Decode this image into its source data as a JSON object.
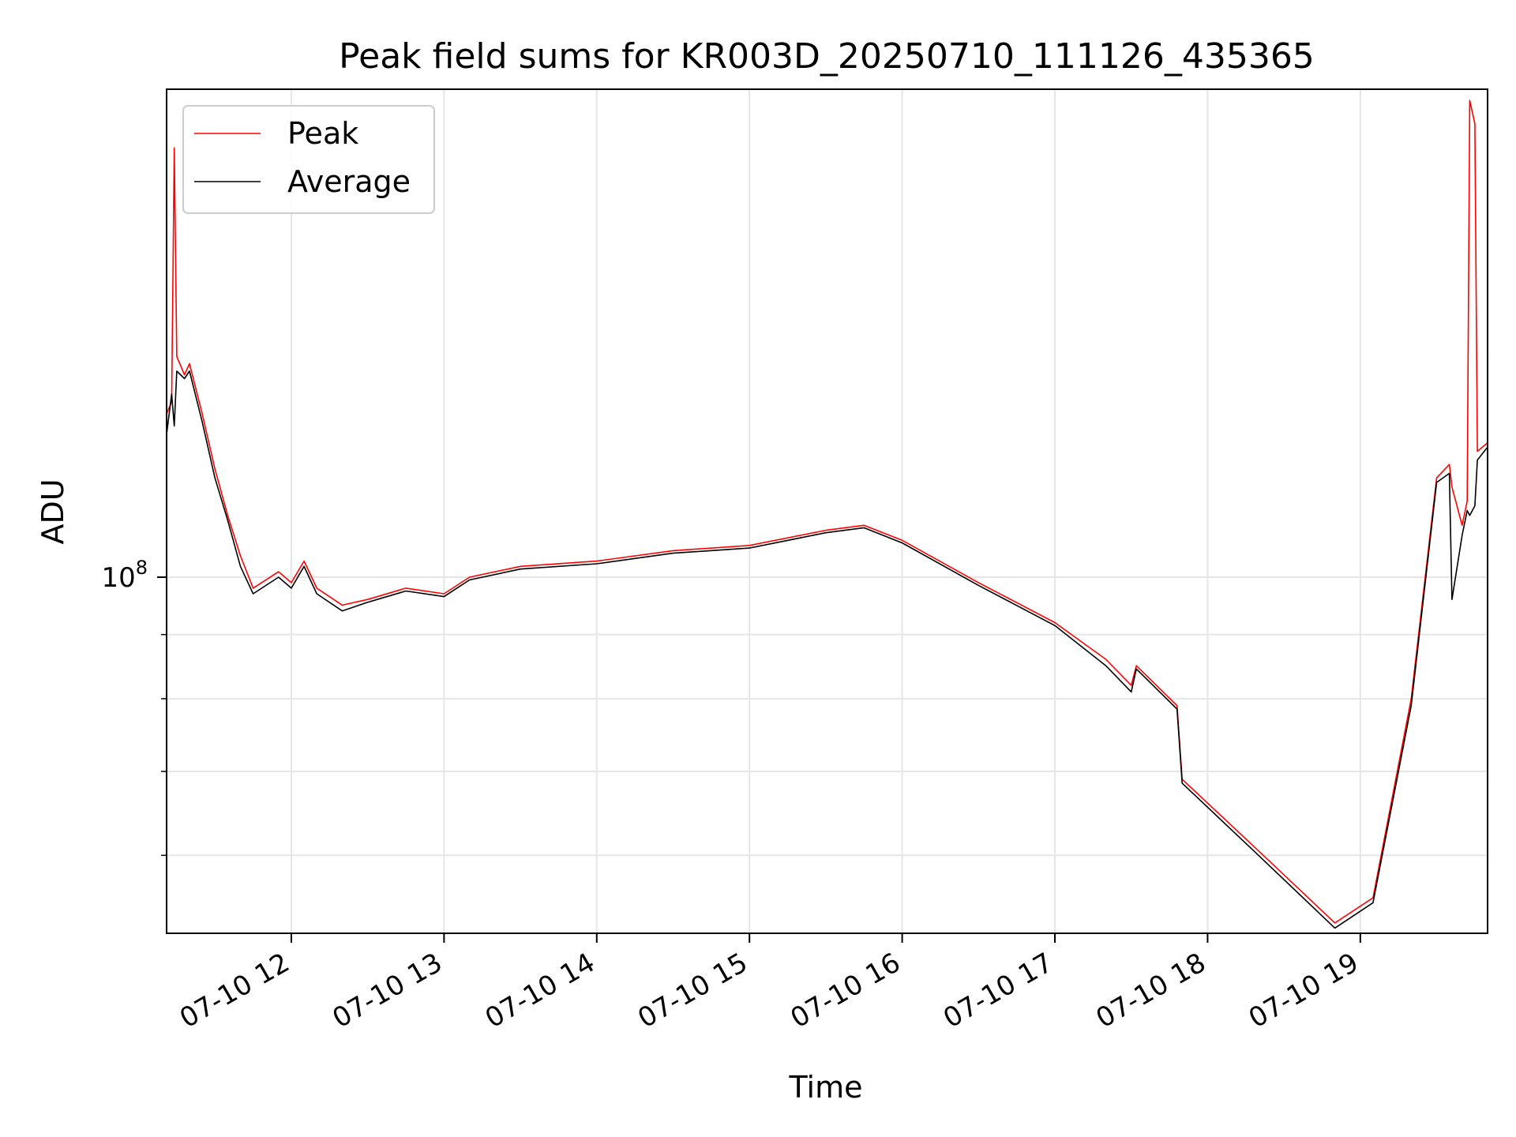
{
  "chart_data": {
    "type": "line",
    "title": "Peak field sums for KR003D_20250710_111126_435365",
    "xlabel": "Time",
    "ylabel": "ADU",
    "x_scale": "time",
    "y_scale": "log",
    "x_range": [
      "07-10 11:11",
      "07-10 19:50"
    ],
    "y_range": [
      52000000,
      245000000
    ],
    "x_ticks": [
      {
        "label": "07-10 12",
        "value": "07-10 12:00"
      },
      {
        "label": "07-10 13",
        "value": "07-10 13:00"
      },
      {
        "label": "07-10 14",
        "value": "07-10 14:00"
      },
      {
        "label": "07-10 15",
        "value": "07-10 15:00"
      },
      {
        "label": "07-10 16",
        "value": "07-10 16:00"
      },
      {
        "label": "07-10 17",
        "value": "07-10 17:00"
      },
      {
        "label": "07-10 18",
        "value": "07-10 18:00"
      },
      {
        "label": "07-10 19",
        "value": "07-10 19:00"
      }
    ],
    "y_ticks_major": [
      {
        "base": "10",
        "exp": "8",
        "value": 100000000
      }
    ],
    "y_ticks_minor": [
      60000000,
      70000000,
      80000000,
      90000000
    ],
    "grid": true,
    "legend": "top-left",
    "colors": {
      "Peak": "#ff0000",
      "Average": "#000000",
      "grid": "#e6e6e6"
    },
    "series": [
      {
        "name": "Peak",
        "points": [
          [
            "07-10 11:11",
            135000000
          ],
          [
            "07-10 11:13",
            138000000
          ],
          [
            "07-10 11:14",
            220000000
          ],
          [
            "07-10 11:15",
            150000000
          ],
          [
            "07-10 11:18",
            145000000
          ],
          [
            "07-10 11:20",
            148000000
          ],
          [
            "07-10 11:25",
            135000000
          ],
          [
            "07-10 11:30",
            122000000
          ],
          [
            "07-10 11:35",
            112000000
          ],
          [
            "07-10 11:40",
            104000000
          ],
          [
            "07-10 11:45",
            98000000
          ],
          [
            "07-10 11:55",
            101000000
          ],
          [
            "07-10 12:00",
            99000000
          ],
          [
            "07-10 12:05",
            103000000
          ],
          [
            "07-10 12:10",
            98000000
          ],
          [
            "07-10 12:20",
            95000000
          ],
          [
            "07-10 12:30",
            96000000
          ],
          [
            "07-10 12:45",
            98000000
          ],
          [
            "07-10 13:00",
            97000000
          ],
          [
            "07-10 13:10",
            100000000
          ],
          [
            "07-10 13:30",
            102000000
          ],
          [
            "07-10 14:00",
            103000000
          ],
          [
            "07-10 14:30",
            105000000
          ],
          [
            "07-10 15:00",
            106000000
          ],
          [
            "07-10 15:30",
            109000000
          ],
          [
            "07-10 15:45",
            110000000
          ],
          [
            "07-10 16:00",
            107000000
          ],
          [
            "07-10 16:30",
            99000000
          ],
          [
            "07-10 17:00",
            92000000
          ],
          [
            "07-10 17:20",
            86000000
          ],
          [
            "07-10 17:30",
            82000000
          ],
          [
            "07-10 17:32",
            85000000
          ],
          [
            "07-10 17:48",
            79000000
          ],
          [
            "07-10 17:50",
            69000000
          ],
          [
            "07-10 18:20",
            60500000
          ],
          [
            "07-10 18:50",
            53000000
          ],
          [
            "07-10 19:05",
            55500000
          ],
          [
            "07-10 19:20",
            80000000
          ],
          [
            "07-10 19:30",
            120000000
          ],
          [
            "07-10 19:35",
            123000000
          ],
          [
            "07-10 19:36",
            118000000
          ],
          [
            "07-10 19:40",
            110000000
          ],
          [
            "07-10 19:42",
            115000000
          ],
          [
            "07-10 19:43",
            240000000
          ],
          [
            "07-10 19:45",
            230000000
          ],
          [
            "07-10 19:46",
            126000000
          ],
          [
            "07-10 19:50",
            128000000
          ]
        ]
      },
      {
        "name": "Average",
        "points": [
          [
            "07-10 11:11",
            130000000
          ],
          [
            "07-10 11:13",
            140000000
          ],
          [
            "07-10 11:14",
            132000000
          ],
          [
            "07-10 11:15",
            146000000
          ],
          [
            "07-10 11:18",
            144000000
          ],
          [
            "07-10 11:20",
            146000000
          ],
          [
            "07-10 11:25",
            133000000
          ],
          [
            "07-10 11:30",
            120000000
          ],
          [
            "07-10 11:35",
            111000000
          ],
          [
            "07-10 11:40",
            102000000
          ],
          [
            "07-10 11:45",
            97000000
          ],
          [
            "07-10 11:55",
            100000000
          ],
          [
            "07-10 12:00",
            98000000
          ],
          [
            "07-10 12:05",
            102000000
          ],
          [
            "07-10 12:10",
            97000000
          ],
          [
            "07-10 12:20",
            94000000
          ],
          [
            "07-10 12:30",
            95500000
          ],
          [
            "07-10 12:45",
            97500000
          ],
          [
            "07-10 13:00",
            96500000
          ],
          [
            "07-10 13:10",
            99500000
          ],
          [
            "07-10 13:30",
            101500000
          ],
          [
            "07-10 14:00",
            102500000
          ],
          [
            "07-10 14:30",
            104500000
          ],
          [
            "07-10 15:00",
            105500000
          ],
          [
            "07-10 15:30",
            108500000
          ],
          [
            "07-10 15:45",
            109500000
          ],
          [
            "07-10 16:00",
            106500000
          ],
          [
            "07-10 16:30",
            98500000
          ],
          [
            "07-10 17:00",
            91500000
          ],
          [
            "07-10 17:20",
            85000000
          ],
          [
            "07-10 17:30",
            81000000
          ],
          [
            "07-10 17:32",
            84500000
          ],
          [
            "07-10 17:48",
            78500000
          ],
          [
            "07-10 17:50",
            68500000
          ],
          [
            "07-10 18:20",
            60000000
          ],
          [
            "07-10 18:50",
            52500000
          ],
          [
            "07-10 19:05",
            55000000
          ],
          [
            "07-10 19:20",
            79000000
          ],
          [
            "07-10 19:30",
            119000000
          ],
          [
            "07-10 19:35",
            121000000
          ],
          [
            "07-10 19:36",
            96000000
          ],
          [
            "07-10 19:40",
            108000000
          ],
          [
            "07-10 19:42",
            113000000
          ],
          [
            "07-10 19:43",
            112000000
          ],
          [
            "07-10 19:45",
            114000000
          ],
          [
            "07-10 19:46",
            124000000
          ],
          [
            "07-10 19:50",
            127000000
          ]
        ]
      }
    ]
  }
}
